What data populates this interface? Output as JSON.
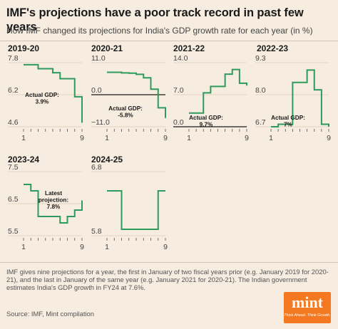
{
  "title": "IMF's projections have a poor track record in past few years",
  "subtitle": "How IMF changed its projections for India's GDP growth rate for each year (in %)",
  "note": "IMF gives nine projections for a year, the first in January of two fiscal years prior (e.g. January 2019 for 2020-21), and the last in January of the same year (e.g. January 2021 for 2020-21). The Indian government estimates India's GDP growth in FY24 at 7.6%.",
  "source": "Source: IMF, Mint compilation",
  "logo": {
    "word": "mint",
    "tagline": "Think Ahead. Think Growth."
  },
  "colors": {
    "background": "#f6ecdf",
    "line": "#2f9a5e",
    "actual_gdp_line": "#1a1a1a"
  },
  "chart_data": [
    {
      "type": "line",
      "title": "2019-20",
      "x": [
        1,
        2,
        3,
        4,
        5,
        6,
        7,
        8,
        9
      ],
      "y": [
        7.7,
        7.7,
        7.5,
        7.5,
        7.3,
        7.0,
        7.0,
        6.1,
        4.8
      ],
      "ylim": [
        4.6,
        7.8
      ],
      "yticks": [
        "7.8",
        "6.2",
        "4.6"
      ],
      "xticks": [
        "1",
        "9"
      ],
      "step": true,
      "annotation": {
        "lines": [
          "Actual GDP:",
          "3.9%"
        ]
      }
    },
    {
      "type": "line",
      "title": "2020-21",
      "x": [
        1,
        2,
        3,
        4,
        5,
        6,
        7,
        8,
        9
      ],
      "y": [
        7.7,
        7.7,
        7.5,
        7.4,
        7.0,
        5.8,
        1.9,
        -4.5,
        -8.0
      ],
      "ylim": [
        -11.0,
        11.0
      ],
      "yticks": [
        "11.0",
        "0.0",
        "-11.0"
      ],
      "xticks": [
        "1",
        "9"
      ],
      "step": true,
      "annotation": {
        "lines": [
          "Actual GDP:",
          "-5.8%"
        ]
      }
    },
    {
      "type": "line",
      "title": "2021-22",
      "x": [
        1,
        2,
        3,
        4,
        5,
        6,
        7,
        8,
        9
      ],
      "y": [
        3.0,
        3.0,
        7.4,
        8.8,
        8.8,
        11.5,
        12.5,
        9.5,
        9.0
      ],
      "ylim": [
        0.0,
        14.0
      ],
      "yticks": [
        "14.0",
        "7.0",
        "0.0"
      ],
      "xticks": [
        "1",
        "9"
      ],
      "step": true,
      "annotation": {
        "lines": [
          "Actual GDP:",
          "9.7%"
        ]
      }
    },
    {
      "type": "line",
      "title": "2022-23",
      "x": [
        1,
        2,
        3,
        4,
        5,
        6,
        7,
        8,
        9
      ],
      "y": [
        6.7,
        6.8,
        6.8,
        8.5,
        8.5,
        9.0,
        8.2,
        6.8,
        6.7
      ],
      "ylim": [
        6.7,
        9.3
      ],
      "yticks": [
        "9.3",
        "8.0",
        "6.7"
      ],
      "xticks": [
        "1",
        "9"
      ],
      "step": true,
      "annotation": {
        "lines": [
          "Actual GDP:",
          "7%"
        ]
      }
    },
    {
      "type": "line",
      "title": "2023-24",
      "x": [
        1,
        2,
        3,
        4,
        5,
        6,
        7,
        8,
        9
      ],
      "y": [
        7.1,
        6.9,
        6.1,
        6.1,
        6.1,
        5.9,
        6.1,
        6.3,
        6.6
      ],
      "ylim": [
        5.5,
        7.5
      ],
      "yticks": [
        "7.5",
        "6.5",
        "5.5"
      ],
      "xticks": [
        "1",
        "9"
      ],
      "step": true,
      "annotation": {
        "lines": [
          "Latest",
          "projection:",
          "7.8%"
        ]
      }
    },
    {
      "type": "line",
      "title": "2024-25",
      "x": [
        1,
        2,
        3,
        4,
        5,
        6,
        7,
        8,
        9
      ],
      "y": [
        6.5,
        6.5,
        5.9,
        5.9,
        5.9,
        5.9,
        5.9,
        6.5,
        6.5
      ],
      "ylim": [
        5.8,
        6.8
      ],
      "yticks": [
        "6.8",
        "5.8"
      ],
      "xticks": [
        "1",
        "9"
      ],
      "step": true,
      "annotation": null
    }
  ]
}
